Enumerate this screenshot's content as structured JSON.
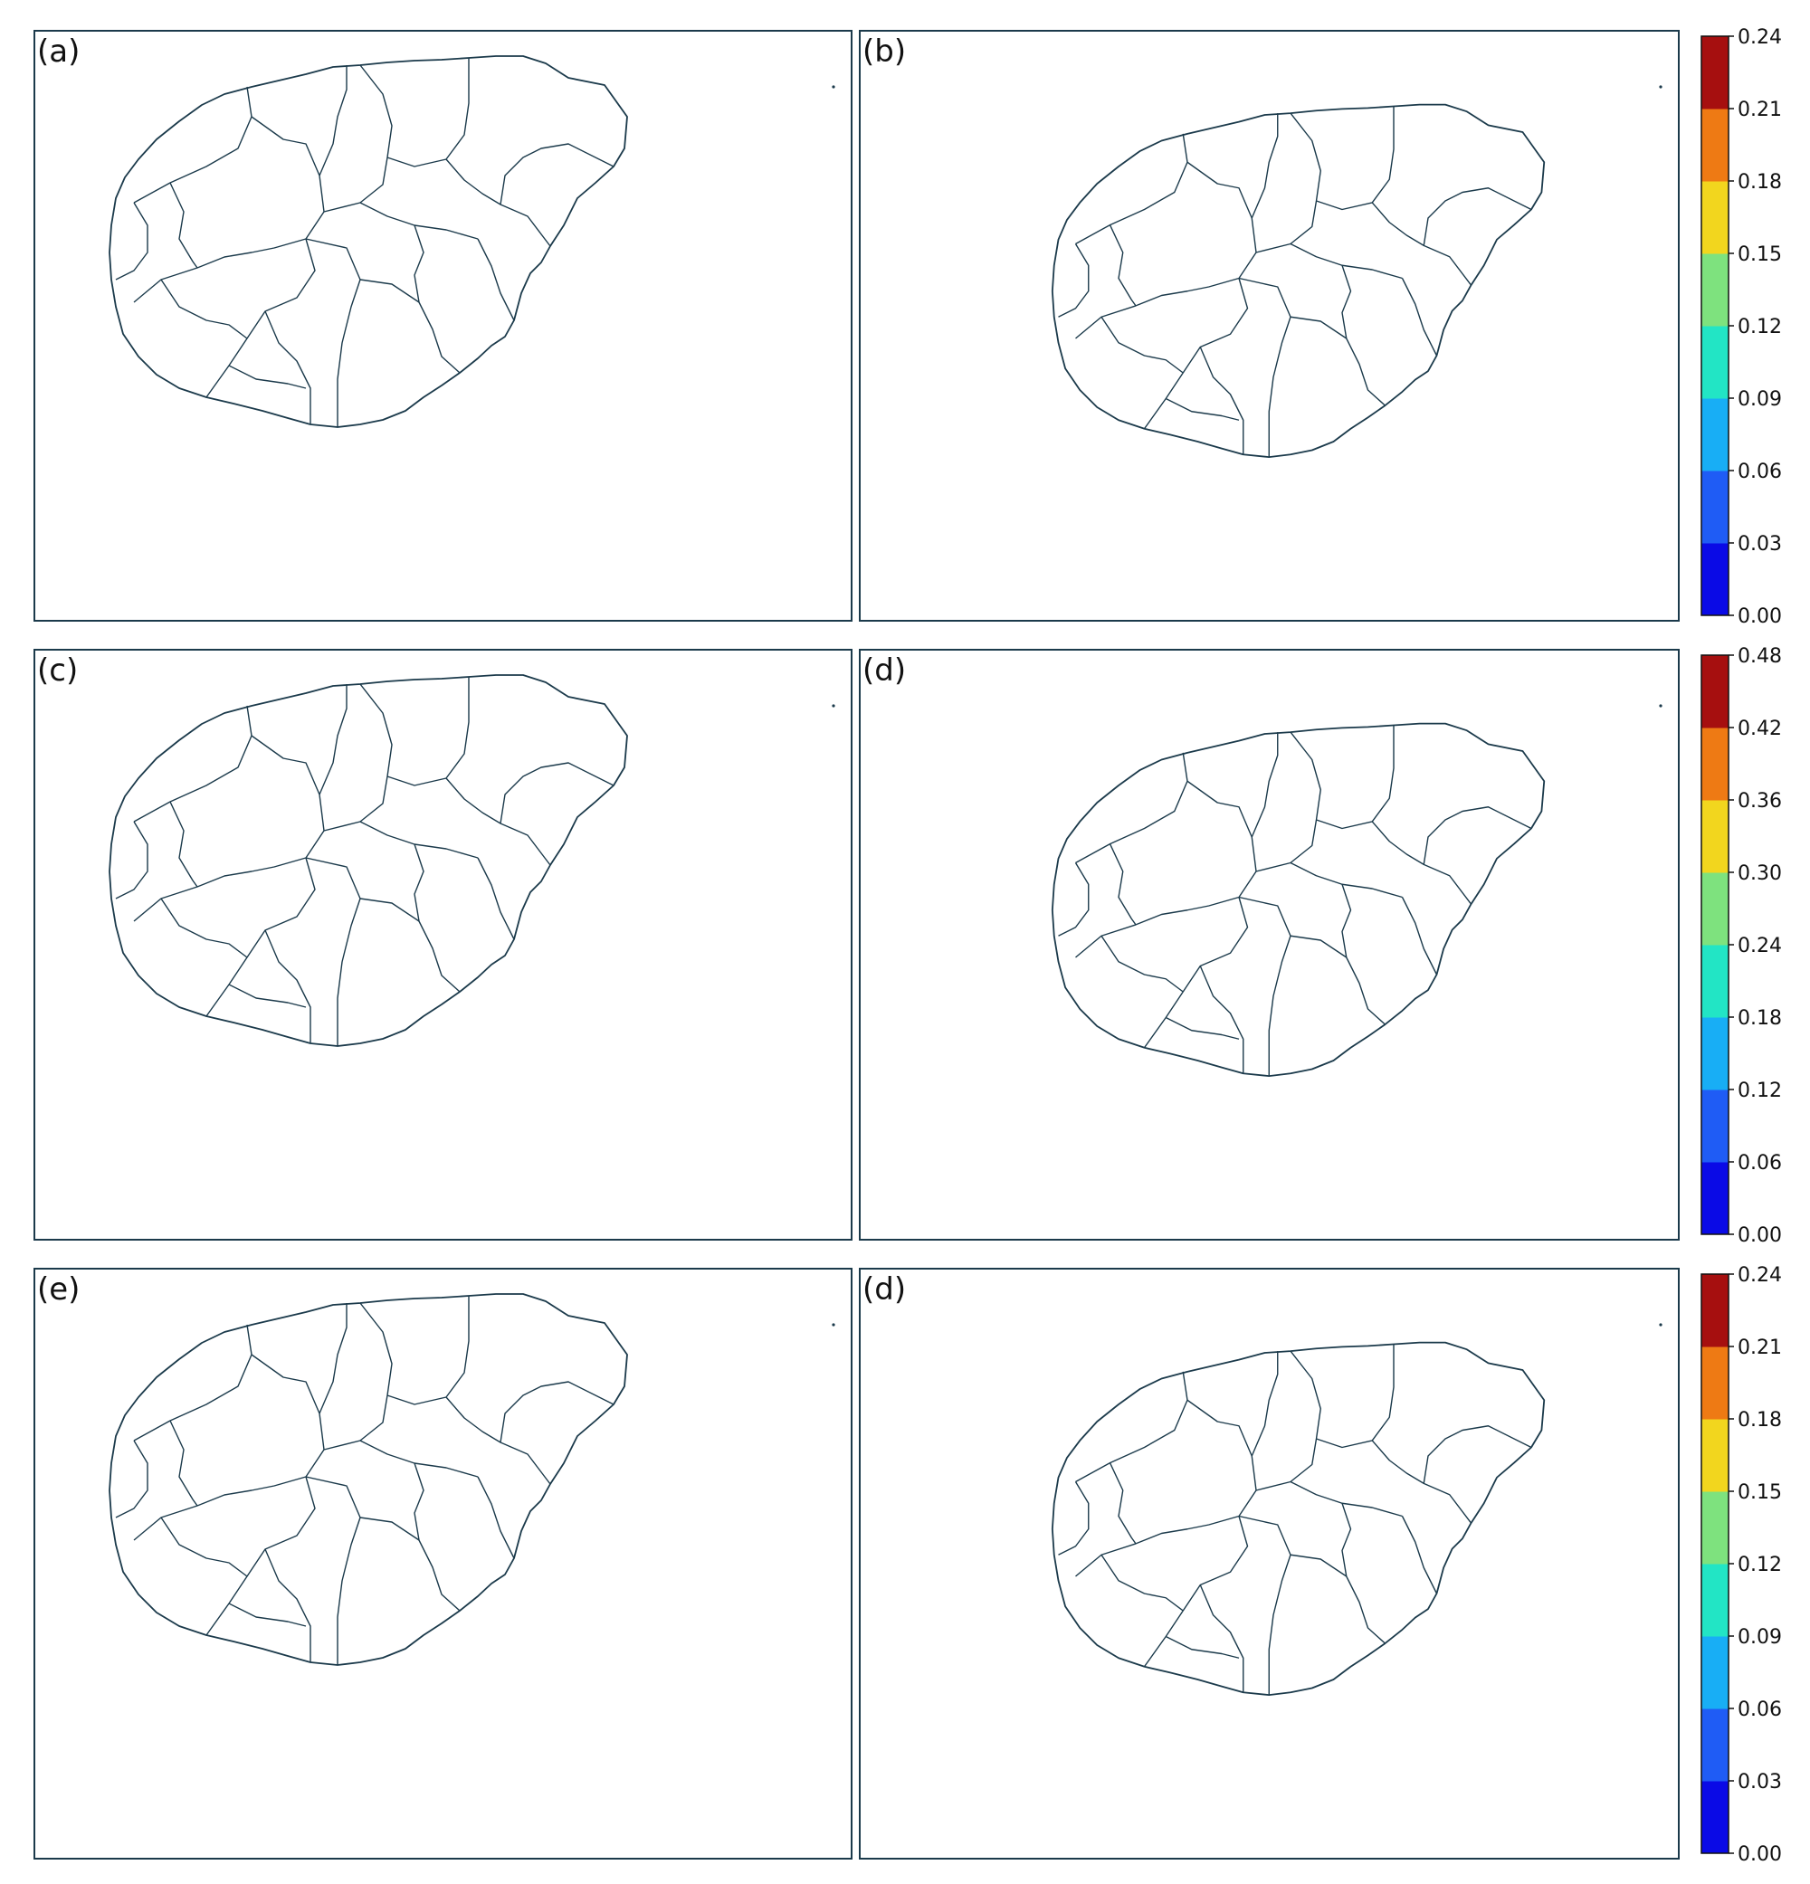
{
  "panels": [
    {
      "label": "(a)",
      "variant": "A",
      "colorbar": 0,
      "segments": [
        "#f29a2b",
        "#22e5c5",
        "#22e5c5",
        "#22e5c5",
        "#22e5c5",
        "#22e5c5",
        "#22e5c5",
        "#22e5c5",
        "#7ee27e",
        "#f2d61e",
        "#7ee27e",
        "#7ee27e",
        "#e84f0d",
        "#f2d61e",
        "#7ee27e",
        "#7ee27e",
        "#7ee27e",
        "#22e5c5",
        "#22e5c5",
        "#22e5c5",
        "#22e5c5",
        "#e84f0d"
      ]
    },
    {
      "label": "(b)",
      "variant": "B",
      "colorbar": 0,
      "segments": [
        "#22e5c5",
        "#22e5c5",
        "#22e5c5",
        "#22e5c5",
        "#22e5c5",
        "#7ee27e",
        "#7ee27e",
        "#7ee27e",
        "#7ee27e",
        "#7ee27e",
        "#f2d61e",
        "#7ee27e",
        "#7ee27e",
        "#7ee27e",
        "#22e5c5",
        "#22e5c5",
        "#22e5c5",
        "#22e5c5",
        "#22e5c5",
        "#22e5c5"
      ]
    },
    {
      "label": "(c)",
      "variant": "A",
      "colorbar": 1,
      "segments": [
        "#f2d61e",
        "#f2d61e",
        "#7ee27e",
        "#22e5c5",
        "#22e5c5",
        "#22e5c5",
        "#7ee27e",
        "#f2d61e",
        "#7ee27e",
        "#22e5c5",
        "#7ee27e",
        "#22e5c5",
        "#22e5c5",
        "#1ec8f0",
        "#22e5c5",
        "#22e5c5",
        "#7ee27e",
        "#7ee27e",
        "#22e5c5",
        "#7ee27e",
        "#7ee27e",
        "#7ee27e"
      ]
    },
    {
      "label": "(d)",
      "variant": "B",
      "colorbar": 1,
      "segments": [
        "#e84f0d",
        "#ee7a14",
        "#ee7a14",
        "#f2d61e",
        "#f2d61e",
        "#f2d61e",
        "#ee7a14",
        "#ee7a14",
        "#f2d61e",
        "#f2d61e",
        "#f2d61e",
        "#7ee27e",
        "#22e5c5",
        "#7ee27e",
        "#7ee27e",
        "#22e5c5",
        "#7ee27e",
        "#7ee27e",
        "#f2d61e",
        "#ee7a14"
      ]
    },
    {
      "label": "(e)",
      "variant": "A",
      "colorbar": 2,
      "segments": [
        "#f2d61e",
        "#f2d61e",
        "#ee7a14",
        "#22e5c5",
        "#22e5c5",
        "#22e5c5",
        "#ee7a14",
        "#ee7a14",
        "#22e5c5",
        "#ee7a14",
        "#ee7a14",
        "#a60f0f",
        "#ee7a14",
        "#f2d61e",
        "#f2d61e",
        "#7ee27e",
        "#7ee27e",
        "#7ee27e",
        "#7ee27e",
        "#7ee27e",
        "#f2d61e",
        "#7ee27e"
      ]
    },
    {
      "label": "(d)",
      "variant": "B",
      "colorbar": 2,
      "segments": [
        "#f2d61e",
        "#f2d61e",
        "#ee7a14",
        "#ee7a14",
        "#ee7a14",
        "#ee7a14",
        "#ee7a14",
        "#ee7a14",
        "#a60f0f",
        "#a60f0f",
        "#ee7a14",
        "#f2d61e",
        "#f2d61e",
        "#f2d61e",
        "#7ee27e",
        "#7ee27e",
        "#7ee27e",
        "#7ee27e",
        "#7ee27e",
        "#7ee27e"
      ]
    }
  ],
  "colorbars": [
    {
      "ticks": [
        "0.00",
        "0.03",
        "0.06",
        "0.09",
        "0.12",
        "0.15",
        "0.18",
        "0.21",
        "0.24"
      ]
    },
    {
      "ticks": [
        "0.00",
        "0.06",
        "0.12",
        "0.18",
        "0.24",
        "0.30",
        "0.36",
        "0.42",
        "0.48"
      ]
    },
    {
      "ticks": [
        "0.00",
        "0.03",
        "0.06",
        "0.09",
        "0.12",
        "0.15",
        "0.18",
        "0.21",
        "0.24"
      ]
    }
  ],
  "colormap": [
    "#0a0ae6",
    "#1f5cf5",
    "#18aef5",
    "#22e5c5",
    "#7ee27e",
    "#f2d61e",
    "#ee7a14",
    "#a60f0f"
  ]
}
